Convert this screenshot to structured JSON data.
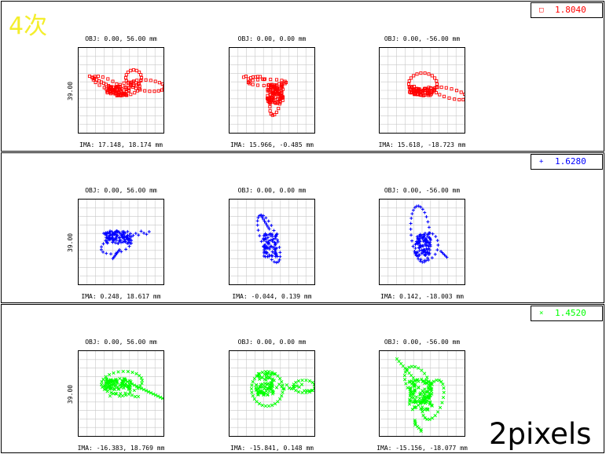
{
  "title": "4次",
  "footer": "2pixels",
  "chart_data": [
    {
      "type": "scatter",
      "series": [
        {
          "name": "1.8040"
        }
      ],
      "marker": "square",
      "color": "#ff0000",
      "legend": {
        "marker": "□",
        "value": "1.8040"
      },
      "scale": "39.00",
      "grid": true,
      "plots": [
        {
          "obj": "OBJ: 0.00, 56.00 mm",
          "ima": "IMA: 17.148, 18.174 mm"
        },
        {
          "obj": "OBJ: 0.00, 0.00 mm",
          "ima": "IMA: 15.966, -0.485 mm"
        },
        {
          "obj": "OBJ: 0.00, -56.00 mm",
          "ima": "IMA: 15.618, -18.723 mm"
        }
      ]
    },
    {
      "type": "scatter",
      "series": [
        {
          "name": "1.6280"
        }
      ],
      "marker": "plus",
      "color": "#0000ff",
      "legend": {
        "marker": "+",
        "value": "1.6280"
      },
      "scale": "39.00",
      "grid": true,
      "plots": [
        {
          "obj": "OBJ: 0.00, 56.00 mm",
          "ima": "IMA: 0.248, 18.617 mm"
        },
        {
          "obj": "OBJ: 0.00, 0.00 mm",
          "ima": "IMA: -0.044, 0.139 mm"
        },
        {
          "obj": "OBJ: 0.00, -56.00 mm",
          "ima": "IMA: 0.142, -18.003 mm"
        }
      ]
    },
    {
      "type": "scatter",
      "series": [
        {
          "name": "1.4520"
        }
      ],
      "marker": "cross",
      "color": "#00ff00",
      "legend": {
        "marker": "×",
        "value": "1.4520"
      },
      "scale": "39.00",
      "grid": true,
      "plots": [
        {
          "obj": "OBJ: 0.00, 56.00 mm",
          "ima": "IMA: -16.383, 18.769 mm"
        },
        {
          "obj": "OBJ: 0.00, 0.00 mm",
          "ima": "IMA: -15.841, 0.148 mm"
        },
        {
          "obj": "OBJ: 0.00, -56.00 mm",
          "ima": "IMA: -15.156, -18.077 mm"
        }
      ]
    }
  ]
}
